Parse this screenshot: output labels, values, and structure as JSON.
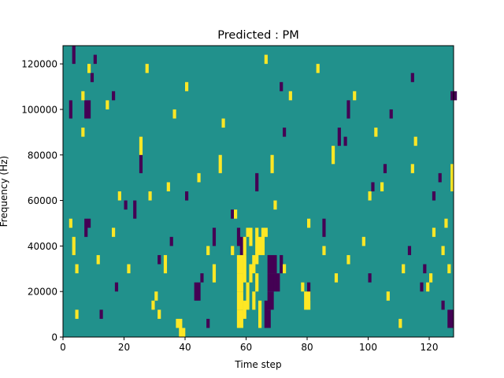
{
  "chart_data": {
    "type": "heatmap",
    "title": "Predicted : PM",
    "xlabel": "Time step",
    "ylabel": "Frequency (Hz)",
    "xlim": [
      0,
      128
    ],
    "ylim": [
      0,
      128000
    ],
    "x_ticks": [
      0,
      20,
      40,
      60,
      80,
      100,
      120
    ],
    "x_tick_labels": [
      "0",
      "20",
      "40",
      "60",
      "80",
      "100",
      "120"
    ],
    "y_ticks": [
      0,
      20000,
      40000,
      60000,
      80000,
      100000,
      120000
    ],
    "y_tick_labels": [
      "0",
      "20000",
      "40000",
      "60000",
      "80000",
      "100000",
      "120000"
    ],
    "rows": 128,
    "cols": 128,
    "colors": {
      "low": "#440154",
      "mid": "#21918c",
      "high": "#fde725"
    },
    "background_value": 0,
    "dark_cells": [
      [
        2,
        96,
        104
      ],
      [
        7,
        96,
        104
      ],
      [
        8,
        96,
        104
      ],
      [
        9,
        112,
        116
      ],
      [
        43,
        16,
        24
      ],
      [
        44,
        16,
        24
      ],
      [
        57,
        40,
        48
      ],
      [
        58,
        36,
        44
      ],
      [
        67,
        4,
        12
      ],
      [
        67,
        12,
        20
      ],
      [
        67,
        20,
        28
      ],
      [
        67,
        28,
        36
      ],
      [
        68,
        12,
        20
      ],
      [
        68,
        20,
        28
      ],
      [
        68,
        28,
        36
      ],
      [
        69,
        20,
        28
      ],
      [
        69,
        28,
        36
      ],
      [
        70,
        20,
        28
      ],
      [
        71,
        28,
        36
      ],
      [
        66,
        4,
        16
      ],
      [
        80,
        16,
        24
      ],
      [
        101,
        64,
        68
      ],
      [
        127,
        104,
        108
      ],
      [
        128,
        104,
        108
      ],
      [
        126,
        4,
        12
      ],
      [
        127,
        4,
        12
      ],
      [
        7,
        44,
        52
      ],
      [
        8,
        48,
        52
      ],
      [
        47,
        4,
        8
      ],
      [
        35,
        40,
        44
      ],
      [
        12,
        8,
        12
      ],
      [
        17,
        20,
        24
      ],
      [
        31,
        32,
        36
      ],
      [
        20,
        56,
        60
      ],
      [
        25,
        72,
        80
      ],
      [
        40,
        60,
        64
      ],
      [
        16,
        104,
        108
      ],
      [
        23,
        52,
        60
      ],
      [
        55,
        52,
        56
      ],
      [
        63,
        64,
        72
      ],
      [
        72,
        88,
        92
      ],
      [
        90,
        84,
        92
      ],
      [
        92,
        84,
        88
      ],
      [
        100,
        24,
        28
      ],
      [
        105,
        72,
        76
      ],
      [
        113,
        36,
        40
      ],
      [
        117,
        20,
        24
      ],
      [
        121,
        60,
        64
      ],
      [
        124,
        12,
        16
      ],
      [
        3,
        120,
        128
      ],
      [
        10,
        120,
        124
      ],
      [
        45,
        24,
        28
      ],
      [
        49,
        40,
        48
      ],
      [
        71,
        108,
        112
      ],
      [
        85,
        44,
        52
      ],
      [
        93,
        96,
        104
      ],
      [
        107,
        96,
        100
      ],
      [
        114,
        112,
        116
      ],
      [
        118,
        28,
        32
      ],
      [
        123,
        68,
        72
      ]
    ],
    "bright_cells": [
      [
        57,
        4,
        12
      ],
      [
        57,
        12,
        20
      ],
      [
        57,
        20,
        28
      ],
      [
        57,
        28,
        36
      ],
      [
        58,
        4,
        12
      ],
      [
        58,
        12,
        20
      ],
      [
        58,
        20,
        28
      ],
      [
        58,
        28,
        36
      ],
      [
        59,
        8,
        16
      ],
      [
        59,
        24,
        36
      ],
      [
        59,
        36,
        44
      ],
      [
        60,
        12,
        24
      ],
      [
        61,
        24,
        32
      ],
      [
        61,
        40,
        48
      ],
      [
        62,
        12,
        20
      ],
      [
        62,
        28,
        36
      ],
      [
        63,
        20,
        28
      ],
      [
        63,
        32,
        48
      ],
      [
        64,
        4,
        16
      ],
      [
        64,
        36,
        44
      ],
      [
        65,
        36,
        48
      ],
      [
        78,
        20,
        24
      ],
      [
        79,
        12,
        20
      ],
      [
        80,
        12,
        20
      ],
      [
        55,
        36,
        40
      ],
      [
        60,
        44,
        48
      ],
      [
        66,
        44,
        48
      ],
      [
        68,
        72,
        80
      ],
      [
        37,
        4,
        8
      ],
      [
        38,
        0,
        8
      ],
      [
        39,
        0,
        4
      ],
      [
        29,
        12,
        16
      ],
      [
        30,
        16,
        20
      ],
      [
        3,
        36,
        44
      ],
      [
        2,
        48,
        52
      ],
      [
        4,
        28,
        32
      ],
      [
        6,
        88,
        92
      ],
      [
        8,
        116,
        120
      ],
      [
        16,
        44,
        48
      ],
      [
        18,
        60,
        64
      ],
      [
        25,
        80,
        88
      ],
      [
        28,
        60,
        64
      ],
      [
        31,
        8,
        12
      ],
      [
        33,
        28,
        36
      ],
      [
        36,
        96,
        100
      ],
      [
        40,
        108,
        112
      ],
      [
        47,
        36,
        40
      ],
      [
        49,
        24,
        32
      ],
      [
        51,
        72,
        80
      ],
      [
        56,
        52,
        56
      ],
      [
        66,
        120,
        124
      ],
      [
        69,
        56,
        60
      ],
      [
        74,
        104,
        108
      ],
      [
        80,
        48,
        52
      ],
      [
        85,
        36,
        40
      ],
      [
        88,
        76,
        84
      ],
      [
        93,
        32,
        36
      ],
      [
        98,
        40,
        44
      ],
      [
        100,
        60,
        64
      ],
      [
        102,
        88,
        92
      ],
      [
        106,
        16,
        20
      ],
      [
        110,
        4,
        8
      ],
      [
        114,
        72,
        76
      ],
      [
        119,
        20,
        24
      ],
      [
        121,
        44,
        48
      ],
      [
        124,
        36,
        40
      ],
      [
        126,
        28,
        32
      ],
      [
        127,
        64,
        76
      ],
      [
        4,
        8,
        12
      ],
      [
        6,
        104,
        108
      ],
      [
        11,
        32,
        36
      ],
      [
        14,
        100,
        104
      ],
      [
        21,
        28,
        32
      ],
      [
        27,
        116,
        120
      ],
      [
        34,
        64,
        68
      ],
      [
        44,
        68,
        72
      ],
      [
        52,
        92,
        96
      ],
      [
        72,
        28,
        32
      ],
      [
        83,
        116,
        120
      ],
      [
        89,
        24,
        28
      ],
      [
        95,
        104,
        108
      ],
      [
        104,
        64,
        68
      ],
      [
        111,
        28,
        32
      ],
      [
        115,
        84,
        88
      ],
      [
        120,
        24,
        28
      ],
      [
        125,
        48,
        52
      ]
    ]
  }
}
